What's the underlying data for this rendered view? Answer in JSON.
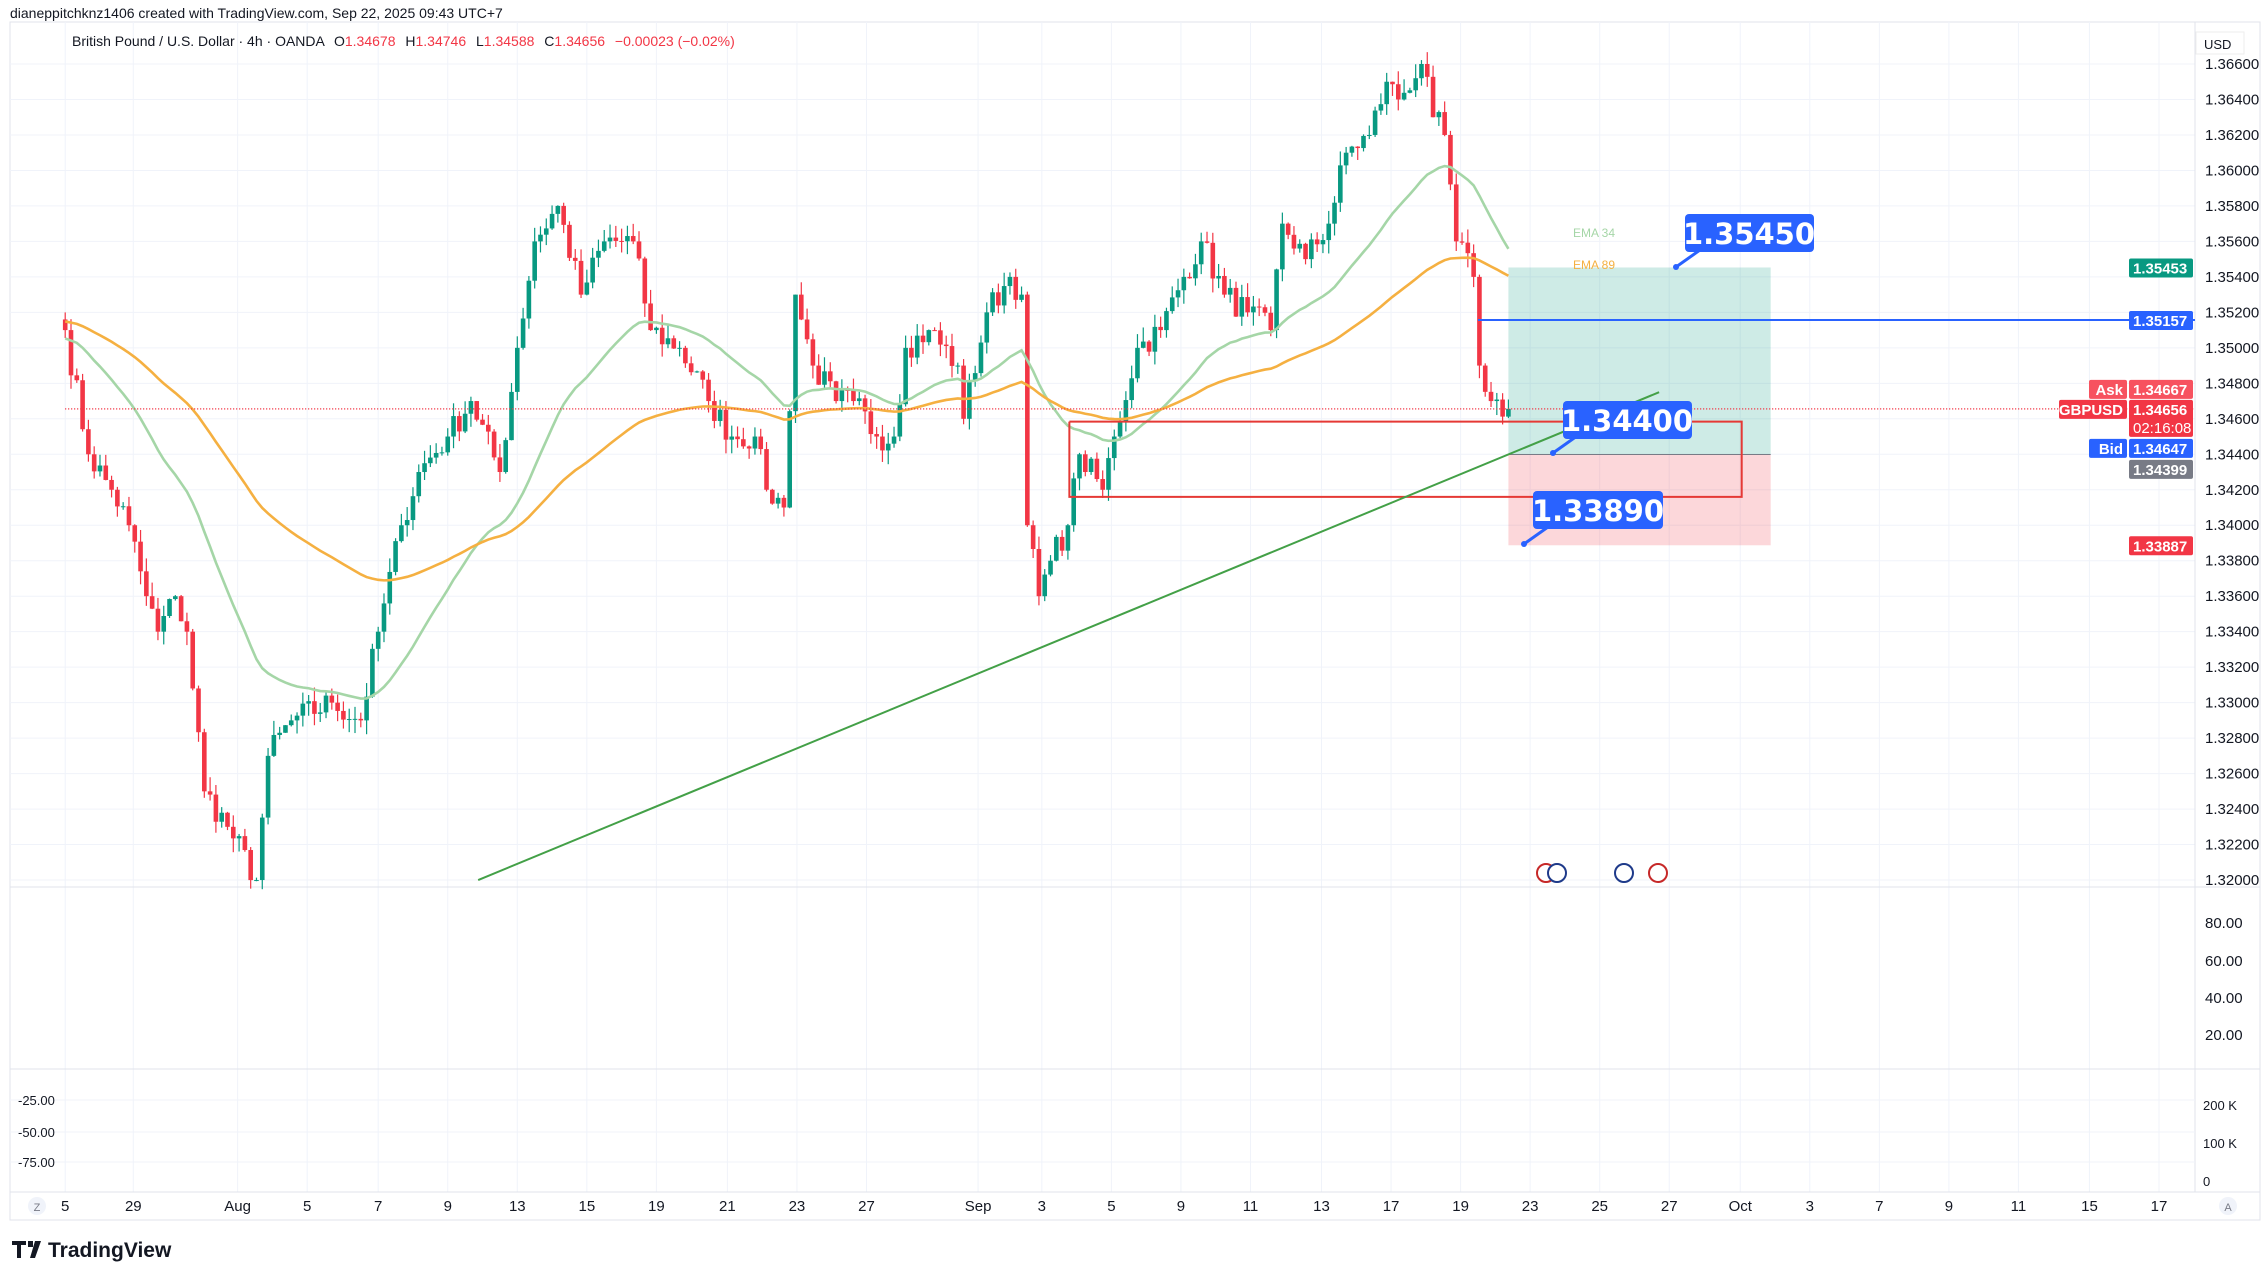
{
  "header": {
    "created_by": "dianeppitchknz1406 created with TradingView.com, Sep 22, 2025 09:43 UTC+7",
    "symbol": "British Pound / U.S. Dollar · 4h · OANDA",
    "o_label": "O",
    "o": "1.34678",
    "h_label": "H",
    "h": "1.34746",
    "l_label": "L",
    "l": "1.34588",
    "c_label": "C",
    "c": "1.34656",
    "change": "−0.00023 (−0.02%)"
  },
  "price_axis": {
    "currency": "USD",
    "ticks": [
      "1.36600",
      "1.36400",
      "1.36200",
      "1.36000",
      "1.35800",
      "1.35600",
      "1.35400",
      "1.35200",
      "1.35000",
      "1.34800",
      "1.34600",
      "1.34400",
      "1.34200",
      "1.34000",
      "1.33800",
      "1.33600",
      "1.33400",
      "1.33200",
      "1.33000",
      "1.32800",
      "1.32600",
      "1.32400",
      "1.32200",
      "1.32000"
    ],
    "tags": {
      "target": "1.35453",
      "alert_line": "1.35157",
      "ask_label": "Ask",
      "ask": "1.34667",
      "symbol_label": "GBPUSD",
      "last": "1.34656",
      "countdown": "02:16:08",
      "bid_label": "Bid",
      "bid": "1.34647",
      "entry": "1.34399",
      "stop": "1.33887"
    }
  },
  "oscillator_axis": {
    "ticks": [
      "80.00",
      "60.00",
      "40.00",
      "20.00"
    ]
  },
  "bottom_pane": {
    "left_ticks": [
      "-25.00",
      "-50.00",
      "-75.00"
    ],
    "right_ticks": [
      "200 K",
      "100 K",
      "0"
    ]
  },
  "time_axis": {
    "ticks": [
      "5",
      "29",
      "Aug",
      "5",
      "7",
      "9",
      "13",
      "15",
      "19",
      "21",
      "23",
      "27",
      "Sep",
      "3",
      "5",
      "9",
      "11",
      "13",
      "17",
      "19",
      "23",
      "25",
      "27",
      "Oct",
      "3",
      "7",
      "9",
      "11",
      "15",
      "17"
    ],
    "left_button": "Z",
    "right_button": "A"
  },
  "indicators": {
    "ema34_label": "EMA 34",
    "ema89_label": "EMA 89",
    "ema34_color": "#a5d6a7",
    "ema89_color": "#f5b041"
  },
  "annotations": {
    "target_callout": "1.35450",
    "entry_callout": "1.34400",
    "stop_callout": "1.33890"
  },
  "logo": "TradingView",
  "colors": {
    "up": "#089981",
    "down": "#f23645",
    "accent_blue": "#2962ff"
  },
  "chart_data": {
    "type": "candlestick",
    "symbol": "GBPUSD",
    "interval": "4h",
    "close_waypoints": [
      {
        "bar": 0,
        "close": 1.351
      },
      {
        "bar": 4,
        "close": 1.344
      },
      {
        "bar": 8,
        "close": 1.342
      },
      {
        "bar": 11,
        "close": 1.34
      },
      {
        "bar": 14,
        "close": 1.336
      },
      {
        "bar": 16,
        "close": 1.334
      },
      {
        "bar": 19,
        "close": 1.336
      },
      {
        "bar": 21,
        "close": 1.334
      },
      {
        "bar": 24,
        "close": 1.325
      },
      {
        "bar": 28,
        "close": 1.323
      },
      {
        "bar": 33,
        "close": 1.32
      },
      {
        "bar": 35,
        "close": 1.327
      },
      {
        "bar": 39,
        "close": 1.329
      },
      {
        "bar": 46,
        "close": 1.33
      },
      {
        "bar": 51,
        "close": 1.329
      },
      {
        "bar": 54,
        "close": 1.334
      },
      {
        "bar": 58,
        "close": 1.34
      },
      {
        "bar": 61,
        "close": 1.343
      },
      {
        "bar": 66,
        "close": 1.345
      },
      {
        "bar": 70,
        "close": 1.347
      },
      {
        "bar": 75,
        "close": 1.343
      },
      {
        "bar": 78,
        "close": 1.35
      },
      {
        "bar": 81,
        "close": 1.356
      },
      {
        "bar": 85,
        "close": 1.358
      },
      {
        "bar": 89,
        "close": 1.353
      },
      {
        "bar": 93,
        "close": 1.356
      },
      {
        "bar": 98,
        "close": 1.356
      },
      {
        "bar": 101,
        "close": 1.351
      },
      {
        "bar": 106,
        "close": 1.35
      },
      {
        "bar": 111,
        "close": 1.347
      },
      {
        "bar": 115,
        "close": 1.345
      },
      {
        "bar": 119,
        "close": 1.345
      },
      {
        "bar": 121,
        "close": 1.342
      },
      {
        "bar": 124,
        "close": 1.341
      },
      {
        "bar": 126,
        "close": 1.353
      },
      {
        "bar": 129,
        "close": 1.349
      },
      {
        "bar": 133,
        "close": 1.347
      },
      {
        "bar": 136,
        "close": 1.347
      },
      {
        "bar": 140,
        "close": 1.345
      },
      {
        "bar": 143,
        "close": 1.345
      },
      {
        "bar": 145,
        "close": 1.35
      },
      {
        "bar": 149,
        "close": 1.351
      },
      {
        "bar": 154,
        "close": 1.349
      },
      {
        "bar": 155,
        "close": 1.346
      },
      {
        "bar": 159,
        "close": 1.352
      },
      {
        "bar": 163,
        "close": 1.354
      },
      {
        "bar": 165,
        "close": 1.353
      },
      {
        "bar": 166,
        "close": 1.34
      },
      {
        "bar": 168,
        "close": 1.336
      },
      {
        "bar": 170,
        "close": 1.338
      },
      {
        "bar": 173,
        "close": 1.34
      },
      {
        "bar": 175,
        "close": 1.344
      },
      {
        "bar": 179,
        "close": 1.342
      },
      {
        "bar": 181,
        "close": 1.345
      },
      {
        "bar": 185,
        "close": 1.35
      },
      {
        "bar": 189,
        "close": 1.351
      },
      {
        "bar": 193,
        "close": 1.354
      },
      {
        "bar": 196,
        "close": 1.356
      },
      {
        "bar": 200,
        "close": 1.353
      },
      {
        "bar": 204,
        "close": 1.352
      },
      {
        "bar": 208,
        "close": 1.351
      },
      {
        "bar": 210,
        "close": 1.357
      },
      {
        "bar": 214,
        "close": 1.355
      },
      {
        "bar": 218,
        "close": 1.357
      },
      {
        "bar": 221,
        "close": 1.361
      },
      {
        "bar": 225,
        "close": 1.362
      },
      {
        "bar": 228,
        "close": 1.365
      },
      {
        "bar": 230,
        "close": 1.364
      },
      {
        "bar": 234,
        "close": 1.366
      },
      {
        "bar": 236,
        "close": 1.363
      },
      {
        "bar": 238,
        "close": 1.362
      },
      {
        "bar": 240,
        "close": 1.356
      },
      {
        "bar": 243,
        "close": 1.354
      },
      {
        "bar": 244,
        "close": 1.349
      },
      {
        "bar": 246,
        "close": 1.347
      },
      {
        "bar": 249,
        "close": 1.34656
      }
    ],
    "ylim": [
      1.3195,
      1.3675
    ],
    "position": {
      "target": 1.35453,
      "entry": 1.34399,
      "stop": 1.33887
    },
    "horizontal_line": 1.35157,
    "zone": {
      "top": 1.34584,
      "bottom": 1.3416
    },
    "trendline": {
      "start_price": 1.32,
      "end_price": 1.3475
    }
  }
}
